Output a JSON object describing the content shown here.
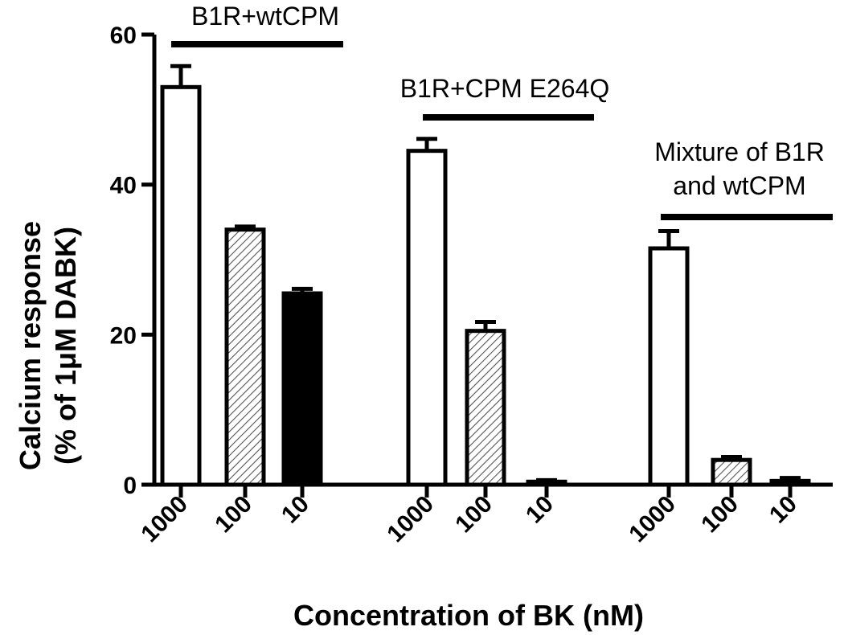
{
  "chart_data": {
    "type": "bar",
    "xlabel": "Concentration of BK (nM)",
    "ylabel_line1": "Calcium response",
    "ylabel_line2": "(% of 1μM DABK)",
    "ylim": [
      0,
      60
    ],
    "yticks": [
      "0",
      "20",
      "40",
      "60"
    ],
    "grid": false,
    "groups": [
      {
        "label_lines": [
          "B1R+wtCPM"
        ],
        "categories": [
          "1000",
          "100",
          "10"
        ],
        "values": [
          53,
          34,
          25.5
        ],
        "errors": [
          2.8,
          0.4,
          0.6
        ],
        "fills": [
          "white",
          "hatch",
          "black"
        ]
      },
      {
        "label_lines": [
          "B1R+CPM E264Q"
        ],
        "categories": [
          "1000",
          "100",
          "10"
        ],
        "values": [
          44.5,
          20.5,
          0.4
        ],
        "errors": [
          1.6,
          1.2,
          0.2
        ],
        "fills": [
          "white",
          "hatch",
          "white"
        ]
      },
      {
        "label_lines": [
          "Mixture of B1R",
          "and wtCPM"
        ],
        "categories": [
          "1000",
          "100",
          "10"
        ],
        "values": [
          31.5,
          3.3,
          0.5
        ],
        "errors": [
          2.3,
          0.4,
          0.4
        ],
        "fills": [
          "white",
          "hatch",
          "white"
        ]
      }
    ]
  }
}
